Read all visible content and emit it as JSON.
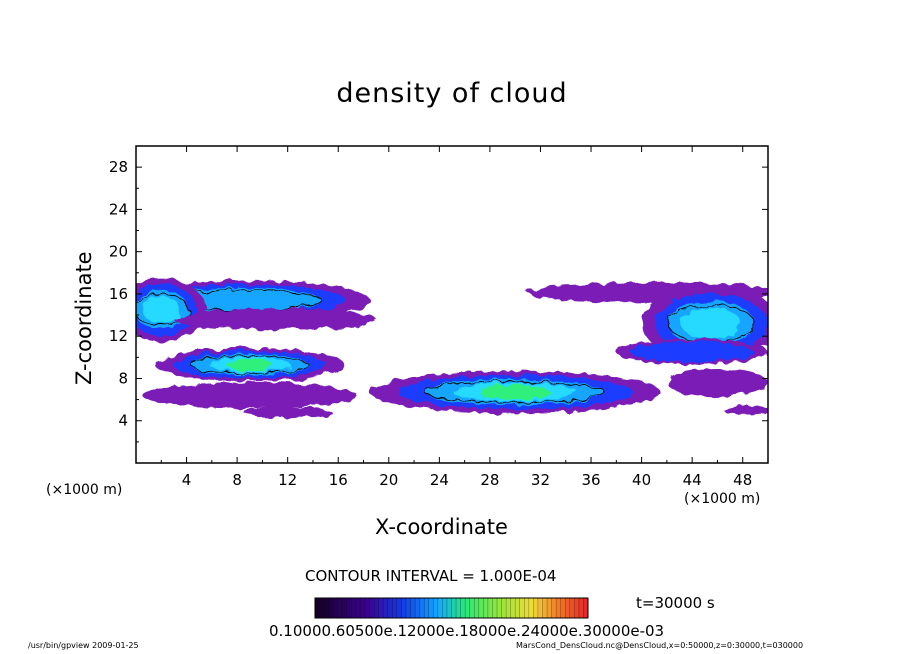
{
  "chart_data": {
    "type": "heatmap",
    "title": "density of cloud",
    "xlabel": "X-coordinate",
    "ylabel": "Z-coordinate",
    "x_unit": "(×1000 m)",
    "y_unit": "(×1000 m)",
    "xlim": [
      0,
      50
    ],
    "ylim": [
      0,
      30
    ],
    "x_ticks": [
      4,
      8,
      12,
      16,
      20,
      24,
      28,
      32,
      36,
      40,
      44,
      48
    ],
    "y_ticks": [
      4,
      8,
      12,
      16,
      20,
      24,
      28
    ],
    "contour_interval": "CONTOUR INTERVAL = 1.000E-04",
    "time_label": "t=30000 s",
    "colorbar_labels": "0.10000.60500e.12000e.18000e.24000e.30000e-03",
    "colors": {
      "background": "#ffffff",
      "outer_shade": "#7a1ab5",
      "mid_shade_1": "#1c3cff",
      "mid_shade_2": "#12a6ff",
      "mid_shade_3": "#27d9ff",
      "inner_shade": "#2ef07a",
      "contour_line": "#000000"
    },
    "cloud_regions": [
      {
        "name": "upper-left layer",
        "x_range": [
          0,
          18.5
        ],
        "z_range": [
          13,
          17.3
        ],
        "max_level": 3
      },
      {
        "name": "left middle",
        "x_range": [
          0,
          17
        ],
        "z_range": [
          4.5,
          12
        ],
        "max_level": 4
      },
      {
        "name": "central lower",
        "x_range": [
          19,
          43
        ],
        "z_range": [
          4.2,
          8.5
        ],
        "max_level": 4
      },
      {
        "name": "right upper",
        "x_range": [
          30.5,
          50
        ],
        "z_range": [
          10,
          17.3
        ],
        "max_level": 3
      },
      {
        "name": "right lower",
        "x_range": [
          44,
          50
        ],
        "z_range": [
          5,
          10
        ],
        "max_level": 2
      }
    ]
  },
  "footer": {
    "left": "/usr/bin/gpview   2009-01-25",
    "right": "MarsCond_DensCloud.nc@DensCloud,x=0:50000,z=0:30000,t=030000"
  }
}
